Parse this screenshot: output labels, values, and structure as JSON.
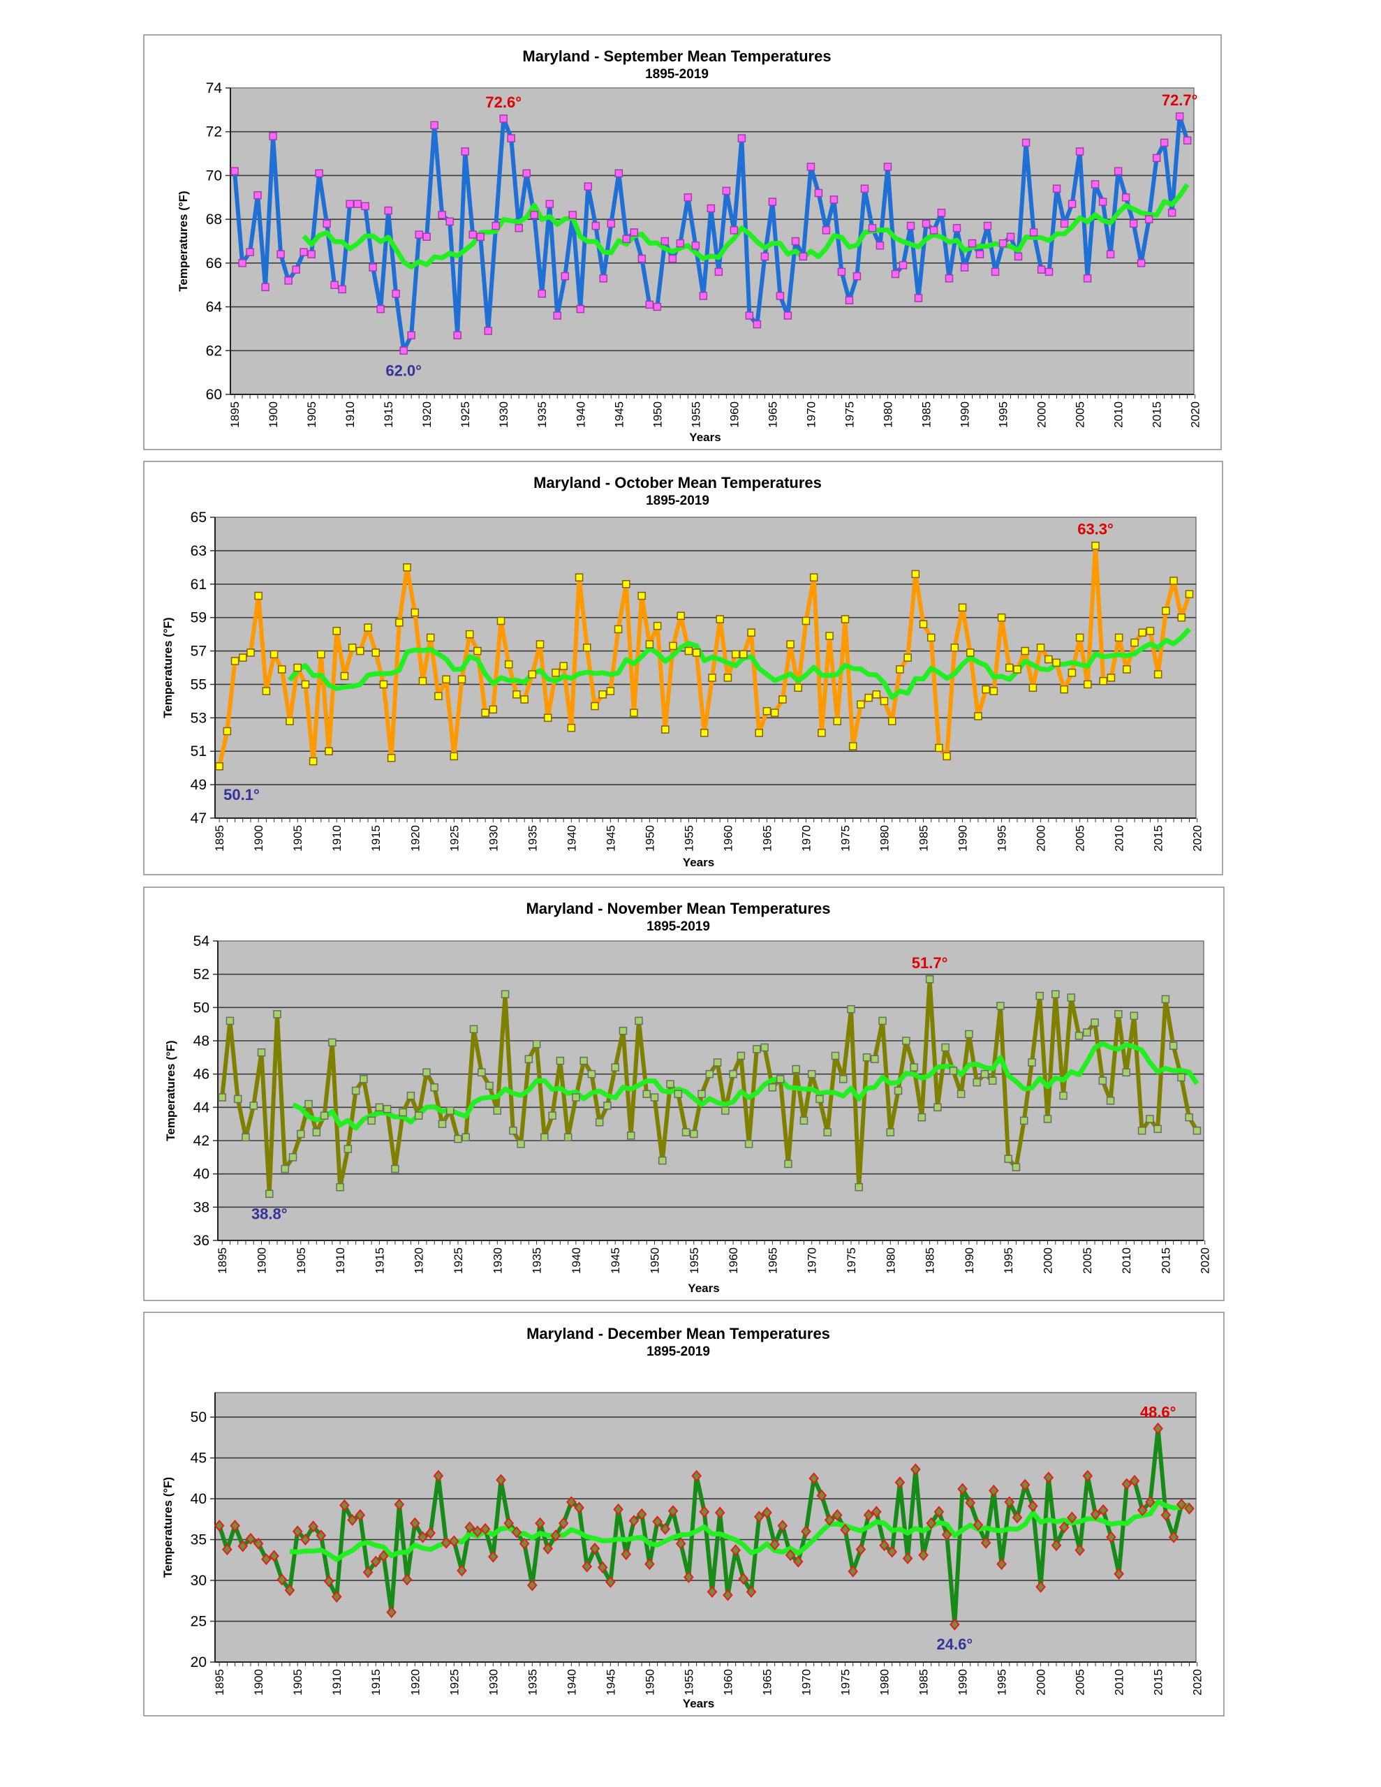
{
  "chart_data": [
    {
      "type": "line",
      "title": "Maryland - September Mean Temperatures",
      "subtitle": "1895-2019",
      "xlabel": "Years",
      "ylabel": "Temperatures (°F)",
      "ylim": [
        60,
        74
      ],
      "yticks": [
        "60",
        "62",
        "64",
        "66",
        "68",
        "70",
        "72",
        "74"
      ],
      "xticks": [
        "1895",
        "1900",
        "1905",
        "1910",
        "1915",
        "1920",
        "1925",
        "1930",
        "1935",
        "1940",
        "1945",
        "1950",
        "1955",
        "1960",
        "1965",
        "1970",
        "1975",
        "1980",
        "1985",
        "1990",
        "1995",
        "2000",
        "2005",
        "2010",
        "2015",
        "2020"
      ],
      "start_year": 1895,
      "grid": true,
      "legend": "none",
      "moving_average_years": 10,
      "colors": {
        "line": "#1f6fd4",
        "marker_fill": "#ff66ff",
        "marker_stroke": "#a040a0",
        "marker_shape": "square",
        "average": "#22ee22",
        "plot_bg": "#c0c0c0"
      },
      "values": [
        70.2,
        66.0,
        66.5,
        69.1,
        64.9,
        71.8,
        66.4,
        65.2,
        65.7,
        66.5,
        66.4,
        70.1,
        67.8,
        65.0,
        64.8,
        68.7,
        68.7,
        68.6,
        65.8,
        63.9,
        68.4,
        64.6,
        62.0,
        62.7,
        67.3,
        67.2,
        72.3,
        68.2,
        67.9,
        62.7,
        71.1,
        67.3,
        67.2,
        62.9,
        67.7,
        72.6,
        71.7,
        67.6,
        70.1,
        68.2,
        64.6,
        68.7,
        63.6,
        65.4,
        68.2,
        63.9,
        69.5,
        67.7,
        65.3,
        67.8,
        70.1,
        67.1,
        67.4,
        66.2,
        64.1,
        64.0,
        67.0,
        66.2,
        66.9,
        69.0,
        66.8,
        64.5,
        68.5,
        65.6,
        69.3,
        67.5,
        71.7,
        63.6,
        63.2,
        66.3,
        68.8,
        64.5,
        63.6,
        67.0,
        66.3,
        70.4,
        69.2,
        67.5,
        68.9,
        65.6,
        64.3,
        65.4,
        69.4,
        67.6,
        66.8,
        70.4,
        65.5,
        65.9,
        67.7,
        64.4,
        67.8,
        67.5,
        68.3,
        65.3,
        67.6,
        65.8,
        66.9,
        66.4,
        67.7,
        65.6,
        66.9,
        67.2,
        66.3,
        71.5,
        67.4,
        65.7,
        65.6,
        69.4,
        67.8,
        68.7,
        71.1,
        65.3,
        69.6,
        68.8,
        66.4,
        70.2,
        69.0,
        67.8,
        66.0,
        68.0,
        70.8,
        71.5,
        68.3,
        72.7,
        71.6
      ],
      "annotations": [
        {
          "text": "72.6°",
          "year": 1930,
          "value": 72.6,
          "color": "#e00000",
          "position": "above"
        },
        {
          "text": "72.7°",
          "year": 2018,
          "value": 72.7,
          "color": "#e00000",
          "position": "above"
        },
        {
          "text": "62.0°",
          "year": 1917,
          "value": 62.0,
          "color": "#333399",
          "position": "below"
        }
      ]
    },
    {
      "type": "line",
      "title": "Maryland - October Mean Temperatures",
      "subtitle": "1895-2019",
      "xlabel": "Years",
      "ylabel": "Temperatures (°F)",
      "ylim": [
        47,
        65
      ],
      "yticks": [
        "47",
        "49",
        "51",
        "53",
        "55",
        "57",
        "59",
        "61",
        "63",
        "65"
      ],
      "xticks": [
        "1895",
        "1900",
        "1905",
        "1910",
        "1915",
        "1920",
        "1925",
        "1930",
        "1935",
        "1940",
        "1945",
        "1950",
        "1955",
        "1960",
        "1965",
        "1970",
        "1975",
        "1980",
        "1985",
        "1990",
        "1995",
        "2000",
        "2005",
        "2010",
        "2015",
        "2020"
      ],
      "start_year": 1895,
      "grid": true,
      "legend": "none",
      "moving_average_years": 10,
      "colors": {
        "line": "#ff9900",
        "marker_fill": "#ffff00",
        "marker_stroke": "#8a5a00",
        "marker_shape": "square",
        "average": "#22ee22",
        "plot_bg": "#c0c0c0"
      },
      "values": [
        50.1,
        52.2,
        56.4,
        56.6,
        56.9,
        60.3,
        54.6,
        56.8,
        55.9,
        52.8,
        56.0,
        55.0,
        50.4,
        56.8,
        51.0,
        58.2,
        55.5,
        57.2,
        57.0,
        58.4,
        56.9,
        55.0,
        50.6,
        58.7,
        62.0,
        59.3,
        55.2,
        57.8,
        54.3,
        55.3,
        50.7,
        55.3,
        58.0,
        57.0,
        53.3,
        53.5,
        58.8,
        56.2,
        54.4,
        54.1,
        55.6,
        57.4,
        53.0,
        55.7,
        56.1,
        52.4,
        61.4,
        57.2,
        53.7,
        54.4,
        54.6,
        58.3,
        61.0,
        53.3,
        60.3,
        57.4,
        58.5,
        52.3,
        57.3,
        59.1,
        57.0,
        56.9,
        52.1,
        55.4,
        58.9,
        55.4,
        56.8,
        56.8,
        58.1,
        52.1,
        53.4,
        53.3,
        54.1,
        57.4,
        54.8,
        58.8,
        61.4,
        52.1,
        57.9,
        52.8,
        58.9,
        51.3,
        53.8,
        54.2,
        54.4,
        54.0,
        52.8,
        55.9,
        56.6,
        61.6,
        58.6,
        57.8,
        51.2,
        50.7,
        57.2,
        59.6,
        56.9,
        53.1,
        54.7,
        54.6,
        59.0,
        56.0,
        55.9,
        57.0,
        54.8,
        57.2,
        56.5,
        56.3,
        54.7,
        55.7,
        57.8,
        55.0,
        63.3,
        55.2,
        55.4,
        57.8,
        55.9,
        57.5,
        58.1,
        58.2,
        55.6,
        59.4,
        61.2,
        59.0,
        60.4
      ],
      "annotations": [
        {
          "text": "63.3°",
          "year": 2007,
          "value": 63.3,
          "color": "#e00000",
          "position": "above"
        },
        {
          "text": "50.1°",
          "year": 1895,
          "value": 50.1,
          "color": "#333399",
          "position": "below-right"
        }
      ]
    },
    {
      "type": "line",
      "title": "Maryland - November Mean Temperatures",
      "subtitle": "1895-2019",
      "xlabel": "Years",
      "ylabel": "Temperatures (°F)",
      "ylim": [
        36,
        54
      ],
      "yticks": [
        "36",
        "38",
        "40",
        "42",
        "44",
        "46",
        "48",
        "50",
        "52",
        "54"
      ],
      "xticks": [
        "1895",
        "1900",
        "1905",
        "1910",
        "1915",
        "1920",
        "1925",
        "1930",
        "1935",
        "1940",
        "1945",
        "1950",
        "1955",
        "1960",
        "1965",
        "1970",
        "1975",
        "1980",
        "1985",
        "1990",
        "1995",
        "2000",
        "2005",
        "2010",
        "2015",
        "2020"
      ],
      "start_year": 1895,
      "grid": true,
      "legend": "none",
      "moving_average_years": 10,
      "colors": {
        "line": "#808000",
        "marker_fill": "#a4d468",
        "marker_stroke": "#6a6a6a",
        "marker_shape": "square",
        "average": "#22ee22",
        "plot_bg": "#c0c0c0"
      },
      "values": [
        44.6,
        49.2,
        44.5,
        42.2,
        44.1,
        47.3,
        38.8,
        49.6,
        40.3,
        41.0,
        42.4,
        44.2,
        42.5,
        43.5,
        47.9,
        39.2,
        41.5,
        45.0,
        45.7,
        43.2,
        44.0,
        43.9,
        40.3,
        43.7,
        44.7,
        43.5,
        46.1,
        45.2,
        43.0,
        43.8,
        42.1,
        42.2,
        48.7,
        46.1,
        45.3,
        43.8,
        50.8,
        42.6,
        41.8,
        46.9,
        47.8,
        42.2,
        43.5,
        46.8,
        42.2,
        44.6,
        46.8,
        46.0,
        43.1,
        44.1,
        46.4,
        48.6,
        42.3,
        49.2,
        44.8,
        44.6,
        40.8,
        45.4,
        44.8,
        42.5,
        42.4,
        44.8,
        46.0,
        46.7,
        43.8,
        46.0,
        47.1,
        41.8,
        47.5,
        47.6,
        45.2,
        45.7,
        40.6,
        46.3,
        43.2,
        46.0,
        44.5,
        42.5,
        47.1,
        45.7,
        49.9,
        39.2,
        47.0,
        46.9,
        49.2,
        42.5,
        45.0,
        48.0,
        46.4,
        43.4,
        51.7,
        44.0,
        47.6,
        46.2,
        44.8,
        48.4,
        45.5,
        46.0,
        45.6,
        50.1,
        40.9,
        40.4,
        43.2,
        46.7,
        50.7,
        43.3,
        50.8,
        44.7,
        50.6,
        48.3,
        48.5,
        49.1,
        45.6,
        44.4,
        49.6,
        46.1,
        49.5,
        42.6,
        43.3,
        42.7,
        50.5,
        47.7,
        45.8,
        43.4,
        42.6
      ],
      "annotations": [
        {
          "text": "51.7°",
          "year": 1985,
          "value": 51.7,
          "color": "#e00000",
          "position": "above"
        },
        {
          "text": "38.8°",
          "year": 1901,
          "value": 38.8,
          "color": "#333399",
          "position": "below"
        }
      ]
    },
    {
      "type": "line",
      "title": "Maryland - December Mean Temperatures",
      "subtitle": "1895-2019",
      "xlabel": "Years",
      "ylabel": "Temperatures (°F)",
      "ylim": [
        20,
        53
      ],
      "yticks": [
        "20",
        "25",
        "30",
        "35",
        "40",
        "45",
        "50"
      ],
      "xticks": [
        "1895",
        "1900",
        "1905",
        "1910",
        "1915",
        "1920",
        "1925",
        "1930",
        "1935",
        "1940",
        "1945",
        "1950",
        "1955",
        "1960",
        "1965",
        "1970",
        "1975",
        "1980",
        "1985",
        "1990",
        "1995",
        "2000",
        "2005",
        "2010",
        "2015",
        "2020"
      ],
      "start_year": 1895,
      "grid": true,
      "legend": "none",
      "moving_average_years": 10,
      "colors": {
        "line": "#178a17",
        "marker_fill": "#7a8a3a",
        "marker_stroke": "#e02020",
        "marker_shape": "diamond",
        "average": "#22ee22",
        "plot_bg": "#c0c0c0"
      },
      "values": [
        36.7,
        33.8,
        36.7,
        34.2,
        35.1,
        34.5,
        32.6,
        33.0,
        30.1,
        28.8,
        36.0,
        35.0,
        36.6,
        35.5,
        29.9,
        28.0,
        39.2,
        37.4,
        38.0,
        31.0,
        32.3,
        33.0,
        26.1,
        39.3,
        30.1,
        37.0,
        35.3,
        35.8,
        42.8,
        34.6,
        34.8,
        31.2,
        36.5,
        36.0,
        36.3,
        32.9,
        42.3,
        37.0,
        35.9,
        34.5,
        29.4,
        37.0,
        33.9,
        35.5,
        37.0,
        39.6,
        38.9,
        31.7,
        33.9,
        31.6,
        29.8,
        38.7,
        33.2,
        37.3,
        38.1,
        32.0,
        37.2,
        36.3,
        38.5,
        34.5,
        30.4,
        42.8,
        38.4,
        28.6,
        38.3,
        28.2,
        33.7,
        30.2,
        28.6,
        37.8,
        38.3,
        34.4,
        36.7,
        33.1,
        32.3,
        36.0,
        42.5,
        40.4,
        37.4,
        38.0,
        36.2,
        31.1,
        33.8,
        38.0,
        38.4,
        34.3,
        33.5,
        42.0,
        32.7,
        43.6,
        33.1,
        37.0,
        38.4,
        35.6,
        24.6,
        41.2,
        39.5,
        36.8,
        34.6,
        41.0,
        32.0,
        39.6,
        37.7,
        41.7,
        39.1,
        29.2,
        42.6,
        34.3,
        36.5,
        37.7,
        33.7,
        42.8,
        38.1,
        38.6,
        35.3,
        30.8,
        41.8,
        42.2,
        38.6,
        39.6,
        48.6,
        38.0,
        35.3,
        39.3,
        38.8
      ],
      "annotations": [
        {
          "text": "48.6°",
          "year": 2015,
          "value": 48.6,
          "color": "#e00000",
          "position": "above"
        },
        {
          "text": "24.6°",
          "year": 1989,
          "value": 24.6,
          "color": "#333399",
          "position": "below"
        }
      ]
    }
  ]
}
